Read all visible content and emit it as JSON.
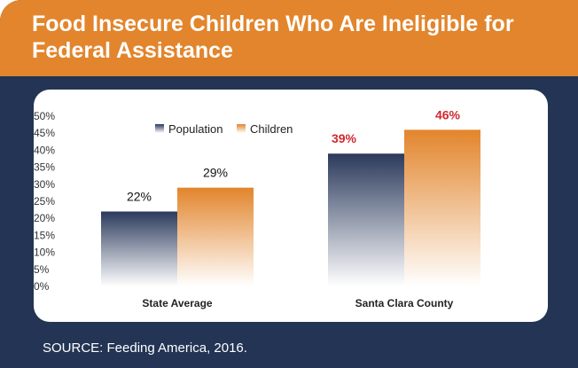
{
  "header": {
    "title": "Food Insecure Children Who Are Ineligible for Federal Assistance"
  },
  "footer": {
    "source": "SOURCE: Feeding America, 2016."
  },
  "colors": {
    "header_orange": "#e2852c",
    "background_navy": "#233454",
    "highlight_red": "#d0282e"
  },
  "chart_data": {
    "type": "bar",
    "title": "",
    "xlabel": "",
    "ylabel": "",
    "ylim": [
      0,
      50
    ],
    "yticks": [
      0,
      5,
      10,
      15,
      20,
      25,
      30,
      35,
      40,
      45,
      50
    ],
    "categories": [
      "State Average",
      "Santa Clara County"
    ],
    "series": [
      {
        "name": "Population",
        "values": [
          22,
          39
        ],
        "labels": [
          "22%",
          "39%"
        ]
      },
      {
        "name": "Children",
        "values": [
          29,
          46
        ],
        "labels": [
          "29%",
          "46%"
        ]
      }
    ],
    "highlighted_category": "Santa Clara County",
    "legend_position": "top-left",
    "grid": false
  }
}
